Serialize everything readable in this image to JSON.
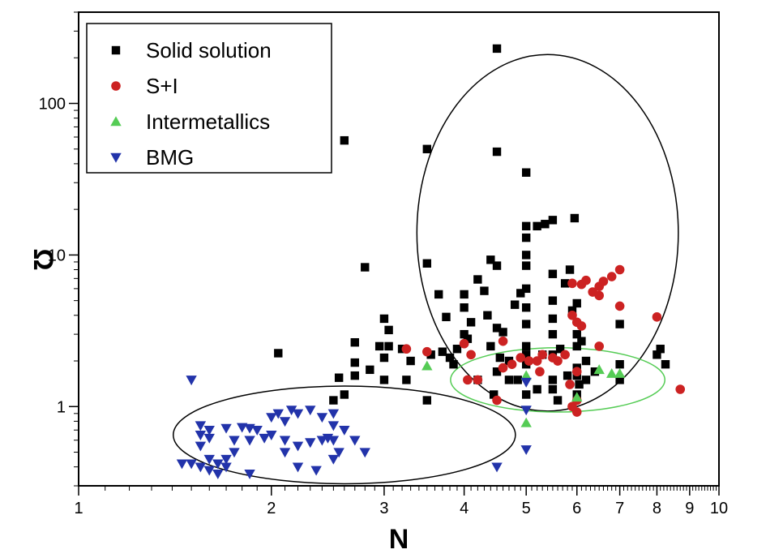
{
  "chart_data": {
    "type": "scatter",
    "title": "",
    "xlabel": "N",
    "ylabel": "Ω",
    "x_scale": "log",
    "y_scale": "log",
    "xlim": [
      1,
      10
    ],
    "ylim": [
      0.3,
      400
    ],
    "x_major_ticks": [
      {
        "value": 1,
        "label": "1"
      },
      {
        "value": 2,
        "label": "2"
      },
      {
        "value": 3,
        "label": "3"
      },
      {
        "value": 4,
        "label": "4"
      },
      {
        "value": 5,
        "label": "5"
      },
      {
        "value": 6,
        "label": "6"
      },
      {
        "value": 7,
        "label": "7"
      },
      {
        "value": 8,
        "label": "8"
      },
      {
        "value": 9,
        "label": "9"
      },
      {
        "value": 10,
        "label": "10"
      }
    ],
    "y_major_ticks": [
      {
        "value": 1,
        "label": "1"
      },
      {
        "value": 10,
        "label": "10"
      },
      {
        "value": 100,
        "label": "100"
      }
    ],
    "grid": false,
    "legend_position": "top-left",
    "series": [
      {
        "name": "Solid solution",
        "marker": "square",
        "color": "#000000",
        "points": [
          [
            4.5,
            230
          ],
          [
            2.6,
            57
          ],
          [
            3.5,
            50
          ],
          [
            4.5,
            48
          ],
          [
            5,
            35
          ],
          [
            2.05,
            2.25
          ],
          [
            2.5,
            1.1
          ],
          [
            2.6,
            1.2
          ],
          [
            2.55,
            1.55
          ],
          [
            2.7,
            1.6
          ],
          [
            2.7,
            1.95
          ],
          [
            2.85,
            1.75
          ],
          [
            2.7,
            2.65
          ],
          [
            2.8,
            8.3
          ],
          [
            2.95,
            2.5
          ],
          [
            3,
            3.8
          ],
          [
            3.05,
            2.5
          ],
          [
            3,
            1.5
          ],
          [
            3,
            2.1
          ],
          [
            3.05,
            3.2
          ],
          [
            3.2,
            2.4
          ],
          [
            3.25,
            1.5
          ],
          [
            3.3,
            2
          ],
          [
            3.5,
            8.8
          ],
          [
            3.5,
            1.1
          ],
          [
            3.55,
            2.2
          ],
          [
            3.65,
            5.5
          ],
          [
            3.7,
            2.3
          ],
          [
            3.75,
            3.9
          ],
          [
            3.8,
            2.1
          ],
          [
            3.85,
            1.9
          ],
          [
            4,
            5.5
          ],
          [
            4,
            4.5
          ],
          [
            4,
            3
          ],
          [
            4.05,
            2.8
          ],
          [
            4.1,
            3.6
          ],
          [
            4.2,
            6.9
          ],
          [
            4.3,
            5.8
          ],
          [
            4.4,
            9.3
          ],
          [
            4.5,
            8.5
          ],
          [
            4.35,
            4
          ],
          [
            4.5,
            3.3
          ],
          [
            4.4,
            2.5
          ],
          [
            4.55,
            2.1
          ],
          [
            4.6,
            3.1
          ],
          [
            4.5,
            1.7
          ],
          [
            4.45,
            1.2
          ],
          [
            4.7,
            2
          ],
          [
            4.8,
            4.7
          ],
          [
            4.9,
            5.6
          ],
          [
            5,
            15.5
          ],
          [
            5,
            13
          ],
          [
            5,
            10
          ],
          [
            5,
            8.5
          ],
          [
            5,
            6
          ],
          [
            5,
            4.5
          ],
          [
            5,
            3.5
          ],
          [
            5,
            2.5
          ],
          [
            5,
            2.2
          ],
          [
            5,
            1.9
          ],
          [
            5,
            1.2
          ],
          [
            5.2,
            15.5
          ],
          [
            5.35,
            16
          ],
          [
            5.5,
            17
          ],
          [
            5.5,
            7.5
          ],
          [
            5.5,
            5
          ],
          [
            5.5,
            3.8
          ],
          [
            5.5,
            3
          ],
          [
            5.5,
            1.5
          ],
          [
            5.5,
            1.3
          ],
          [
            5.6,
            1.1
          ],
          [
            5.75,
            6.5
          ],
          [
            5.85,
            8
          ],
          [
            5.95,
            17.5
          ],
          [
            6,
            4.8
          ],
          [
            6,
            3
          ],
          [
            6,
            2.5
          ],
          [
            6,
            1.8
          ],
          [
            6,
            1.6
          ],
          [
            6,
            1.2
          ],
          [
            6.2,
            2
          ],
          [
            6.2,
            1.5
          ],
          [
            6.4,
            1.7
          ],
          [
            7,
            3.5
          ],
          [
            7,
            1.9
          ],
          [
            7,
            1.5
          ],
          [
            8,
            2.2
          ],
          [
            8.1,
            2.4
          ],
          [
            8.25,
            1.9
          ],
          [
            5.2,
            1.3
          ],
          [
            5.5,
            2.2
          ],
          [
            5.9,
            4.3
          ],
          [
            4.2,
            1.5
          ],
          [
            3.9,
            2.4
          ],
          [
            4.7,
            1.5
          ],
          [
            4.85,
            1.5
          ],
          [
            5.3,
            2.2
          ],
          [
            5.65,
            2.4
          ],
          [
            5.8,
            1.6
          ],
          [
            6.1,
            2.7
          ],
          [
            6.05,
            1.4
          ]
        ]
      },
      {
        "name": "S+I",
        "marker": "circle",
        "color": "#cc2222",
        "points": [
          [
            3.25,
            2.4
          ],
          [
            3.5,
            2.3
          ],
          [
            4,
            2.6
          ],
          [
            4.1,
            2.2
          ],
          [
            4.05,
            1.5
          ],
          [
            4.2,
            1.5
          ],
          [
            4.5,
            1.1
          ],
          [
            4.6,
            1.8
          ],
          [
            4.6,
            2.7
          ],
          [
            4.75,
            1.9
          ],
          [
            4.9,
            2.1
          ],
          [
            5.05,
            2
          ],
          [
            5.2,
            2
          ],
          [
            5.25,
            1.7
          ],
          [
            5.3,
            2.2
          ],
          [
            5.5,
            2.1
          ],
          [
            5.6,
            2
          ],
          [
            5.75,
            2.2
          ],
          [
            5.85,
            1.4
          ],
          [
            5.9,
            1
          ],
          [
            6,
            0.92
          ],
          [
            6,
            1.1
          ],
          [
            6,
            1.7
          ],
          [
            6.1,
            3.4
          ],
          [
            6,
            3.6
          ],
          [
            5.9,
            4
          ],
          [
            5.9,
            6.5
          ],
          [
            6.1,
            6.4
          ],
          [
            6.2,
            6.8
          ],
          [
            6.35,
            5.7
          ],
          [
            6.5,
            6.2
          ],
          [
            6.6,
            6.7
          ],
          [
            6.8,
            7.2
          ],
          [
            7,
            8
          ],
          [
            7,
            4.6
          ],
          [
            6.5,
            5.4
          ],
          [
            6.5,
            2.5
          ],
          [
            8,
            3.9
          ],
          [
            8.7,
            1.3
          ]
        ]
      },
      {
        "name": "Intermetallics",
        "marker": "triangle-up",
        "color": "#55cc55",
        "points": [
          [
            3.5,
            1.85
          ],
          [
            5,
            0.78
          ],
          [
            5,
            1.6
          ],
          [
            6,
            1.15
          ],
          [
            6.5,
            1.75
          ],
          [
            6.8,
            1.65
          ],
          [
            7,
            1.65
          ]
        ]
      },
      {
        "name": "BMG",
        "marker": "triangle-down",
        "color": "#2233aa",
        "points": [
          [
            1.5,
            1.5
          ],
          [
            1.55,
            0.75
          ],
          [
            1.6,
            0.7
          ],
          [
            1.7,
            0.72
          ],
          [
            1.8,
            0.73
          ],
          [
            1.85,
            0.72
          ],
          [
            1.9,
            0.7
          ],
          [
            1.55,
            0.65
          ],
          [
            1.6,
            0.62
          ],
          [
            1.75,
            0.6
          ],
          [
            1.85,
            0.6
          ],
          [
            1.95,
            0.62
          ],
          [
            2,
            0.65
          ],
          [
            2,
            0.85
          ],
          [
            2.05,
            0.9
          ],
          [
            2.1,
            0.8
          ],
          [
            2.15,
            0.95
          ],
          [
            2.2,
            0.9
          ],
          [
            2.3,
            0.95
          ],
          [
            2.4,
            0.85
          ],
          [
            2.5,
            0.9
          ],
          [
            2.5,
            0.75
          ],
          [
            2.6,
            0.7
          ],
          [
            2.1,
            0.6
          ],
          [
            2.2,
            0.55
          ],
          [
            2.3,
            0.58
          ],
          [
            2.4,
            0.6
          ],
          [
            2.45,
            0.62
          ],
          [
            2.5,
            0.6
          ],
          [
            2.55,
            0.5
          ],
          [
            2.7,
            0.6
          ],
          [
            2.8,
            0.5
          ],
          [
            2.1,
            0.5
          ],
          [
            1.55,
            0.55
          ],
          [
            1.6,
            0.45
          ],
          [
            1.5,
            0.42
          ],
          [
            1.55,
            0.4
          ],
          [
            1.6,
            0.38
          ],
          [
            1.65,
            0.42
          ],
          [
            1.65,
            0.36
          ],
          [
            1.7,
            0.4
          ],
          [
            1.45,
            0.42
          ],
          [
            1.85,
            0.36
          ],
          [
            2.2,
            0.4
          ],
          [
            2.35,
            0.38
          ],
          [
            2.5,
            0.45
          ],
          [
            1.7,
            0.45
          ],
          [
            1.75,
            0.5
          ],
          [
            4.5,
            0.4
          ],
          [
            5,
            0.52
          ],
          [
            5,
            0.95
          ],
          [
            5,
            1.45
          ]
        ]
      }
    ],
    "annotations": [
      {
        "type": "ellipse",
        "color": "#000000",
        "label": "",
        "cx": 5.4,
        "cy": 14,
        "rx_factor": 1.6,
        "ry_factor": 15
      },
      {
        "type": "ellipse",
        "color": "#000000",
        "label": "",
        "cx": 2.6,
        "cy": 0.65,
        "rx_factor": 1.85,
        "ry_factor": 2.1
      },
      {
        "type": "ellipse",
        "color": "#55cc55",
        "label": "",
        "cx": 5.6,
        "cy": 1.5,
        "rx_factor": 1.47,
        "ry_factor": 1.63
      }
    ]
  }
}
